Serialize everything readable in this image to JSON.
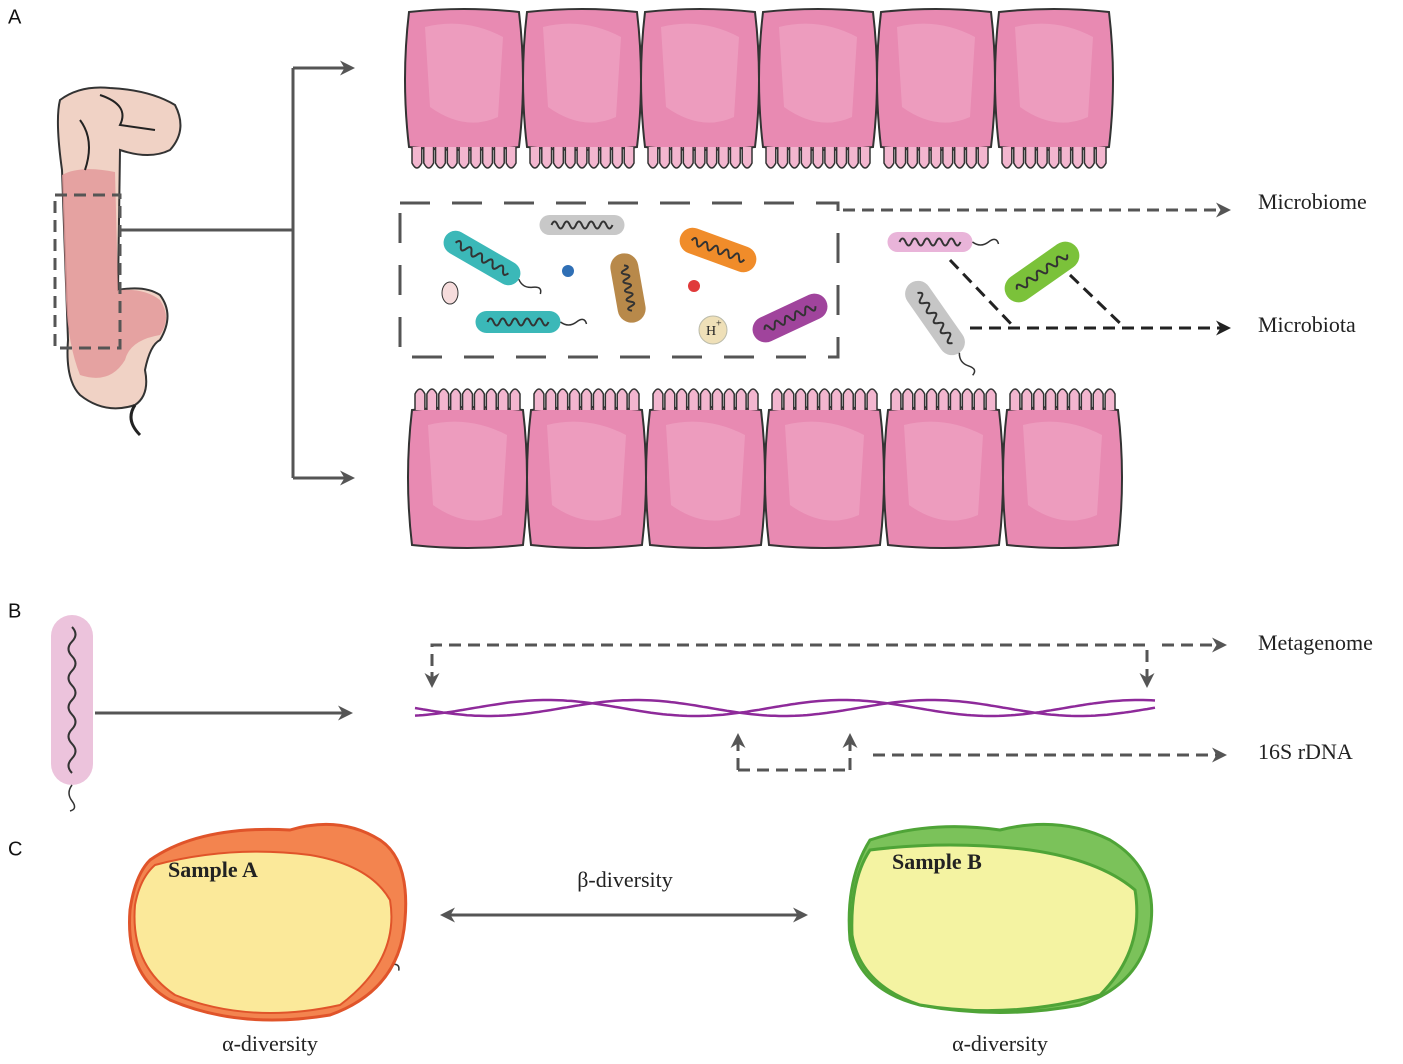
{
  "panels": [
    {
      "label": "A",
      "outputs": [
        "Microbiome",
        "Microbiota"
      ],
      "ion": {
        "symbol": "H",
        "charge": "+"
      }
    },
    {
      "label": "B",
      "outputs": [
        "Metagenome",
        "16S rDNA"
      ]
    },
    {
      "label": "C",
      "samples": [
        {
          "name": "Sample A",
          "caption": "α-diversity"
        },
        {
          "name": "Sample B",
          "caption": "α-diversity"
        }
      ],
      "comparison": "β-diversity"
    }
  ]
}
